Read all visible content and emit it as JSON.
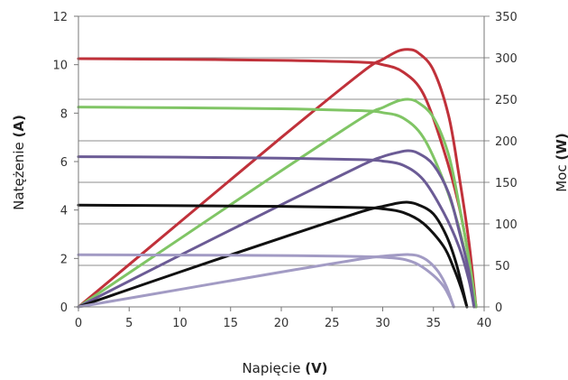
{
  "chart_data": {
    "type": "line",
    "xlabel": "Napięcie",
    "xunit": "(V)",
    "ylabel_left": "Natężenie",
    "ylabel_left_unit": "(A)",
    "ylabel_right": "Moc",
    "ylabel_right_unit": "(W)",
    "xlim": [
      0,
      40
    ],
    "ylim_left": [
      0,
      12
    ],
    "ylim_right": [
      0,
      350
    ],
    "xticks": [
      "0",
      "5",
      "10",
      "15",
      "20",
      "25",
      "30",
      "35",
      "40"
    ],
    "yticks_left": [
      "0",
      "2",
      "4",
      "6",
      "8",
      "10",
      "12"
    ],
    "yticks_right": [
      "0",
      "50",
      "100",
      "150",
      "200",
      "250",
      "300",
      "350"
    ],
    "gridlines_right": [
      0,
      50,
      100,
      150,
      200,
      250,
      300,
      350
    ],
    "series": [
      {
        "color": "#c0313a",
        "current": {
          "x": [
            0,
            10,
            20,
            28,
            30,
            32,
            34,
            36,
            37.5,
            38.5,
            39.2
          ],
          "y": [
            10.25,
            10.22,
            10.18,
            10.1,
            10.0,
            9.7,
            8.8,
            6.5,
            4.2,
            2.0,
            0
          ]
        },
        "power": {
          "x": [
            0,
            10,
            20,
            28,
            30,
            31.5,
            32.5,
            33.5,
            35,
            36.5,
            37.5,
            38.5,
            39.2
          ],
          "y": [
            0,
            102,
            204,
            283,
            298,
            308,
            310,
            306,
            285,
            230,
            160,
            78,
            0
          ]
        }
      },
      {
        "color": "#80c565",
        "current": {
          "x": [
            0,
            10,
            20,
            28,
            30,
            32,
            34,
            36,
            37.5,
            38.5,
            39.2
          ],
          "y": [
            8.25,
            8.22,
            8.18,
            8.1,
            8.02,
            7.8,
            7.0,
            5.2,
            3.3,
            1.5,
            0
          ]
        },
        "power": {
          "x": [
            0,
            10,
            20,
            28,
            30,
            31.5,
            32.5,
            33.5,
            35,
            36.5,
            37.5,
            38.5,
            39.2
          ],
          "y": [
            0,
            82,
            164,
            228,
            240,
            248,
            250,
            246,
            228,
            183,
            125,
            58,
            0
          ]
        }
      },
      {
        "color": "#6b5b95",
        "current": {
          "x": [
            0,
            10,
            20,
            28,
            30,
            32,
            34,
            36,
            37.5,
            38.5,
            39
          ],
          "y": [
            6.2,
            6.18,
            6.14,
            6.08,
            6.02,
            5.85,
            5.25,
            3.9,
            2.5,
            1.1,
            0
          ]
        },
        "power": {
          "x": [
            0,
            10,
            20,
            28,
            30,
            31.5,
            32.5,
            33.5,
            35,
            36.5,
            37.5,
            38.5,
            39
          ],
          "y": [
            0,
            62,
            123,
            171,
            181,
            186,
            188,
            185,
            171,
            137,
            93,
            42,
            0
          ]
        }
      },
      {
        "color": "#111111",
        "current": {
          "x": [
            0,
            10,
            20,
            28,
            30,
            32,
            34,
            36,
            37,
            37.8,
            38.3
          ],
          "y": [
            4.2,
            4.18,
            4.15,
            4.1,
            4.05,
            3.9,
            3.45,
            2.5,
            1.6,
            0.7,
            0
          ]
        },
        "power": {
          "x": [
            0,
            10,
            20,
            28,
            30,
            31.5,
            32.5,
            33.5,
            35,
            36.3,
            37.3,
            38.3
          ],
          "y": [
            0,
            42,
            83,
            115,
            121,
            125,
            126,
            123,
            112,
            85,
            50,
            0
          ]
        }
      },
      {
        "color": "#a29bc4",
        "current": {
          "x": [
            0,
            10,
            20,
            28,
            30,
            32,
            33.5,
            35,
            36,
            36.6,
            37
          ],
          "y": [
            2.15,
            2.14,
            2.12,
            2.08,
            2.05,
            1.97,
            1.75,
            1.3,
            0.85,
            0.4,
            0
          ]
        },
        "power": {
          "x": [
            0,
            10,
            20,
            28,
            30,
            31.5,
            32.5,
            33.5,
            34.5,
            35.5,
            36.3,
            37
          ],
          "y": [
            0,
            21,
            42,
            58,
            61,
            62.5,
            63,
            61.5,
            55,
            42,
            24,
            0
          ]
        }
      }
    ]
  }
}
